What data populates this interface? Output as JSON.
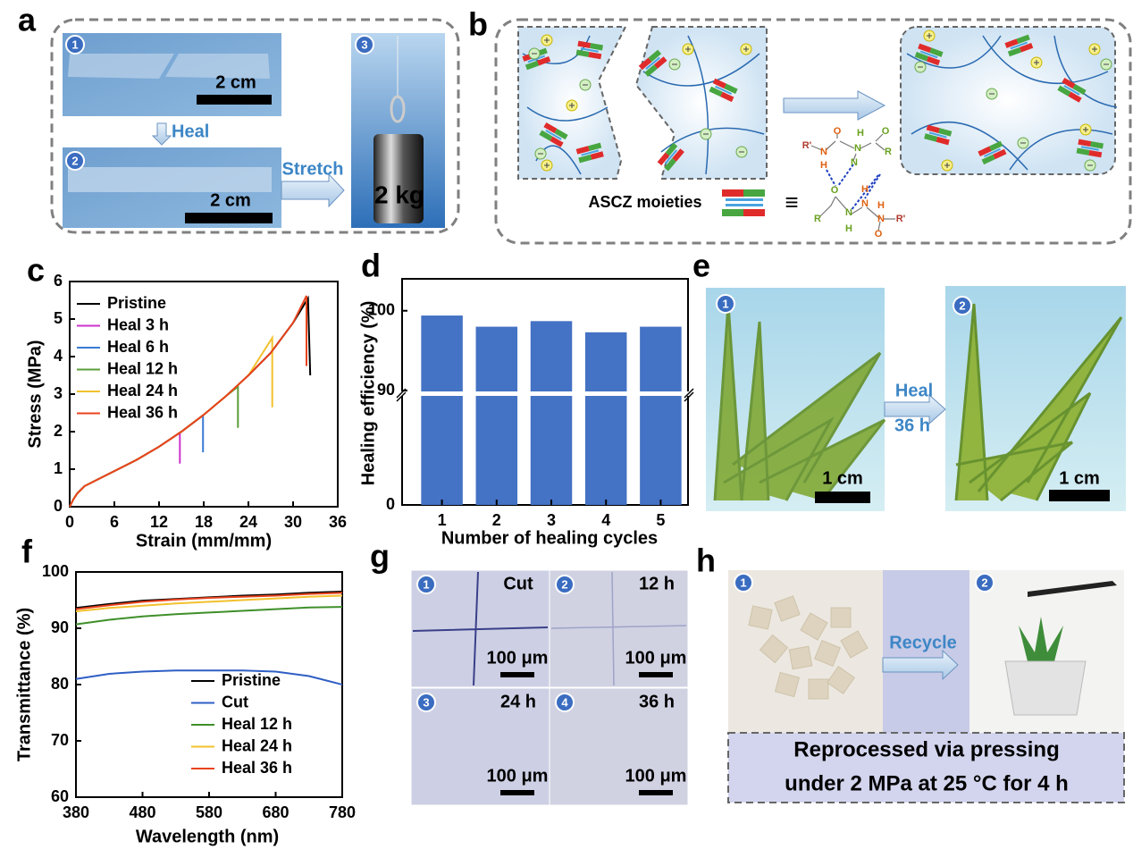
{
  "panel_labels": [
    "a",
    "b",
    "c",
    "d",
    "e",
    "f",
    "g",
    "h"
  ],
  "panel_a": {
    "markers": [
      "1",
      "2",
      "3"
    ],
    "scale_1": "2 cm",
    "heal": "Heal",
    "scale_2": "2 cm",
    "stretch": "Stretch",
    "weight": "2 kg"
  },
  "panel_b": {
    "moieties": "ASCZ moieties",
    "equivalent": "≡",
    "atoms": [
      "R'",
      "N",
      "H",
      "O",
      "H",
      "N",
      "N",
      "O",
      "R",
      "O",
      "R",
      "N",
      "H",
      "N",
      "H",
      "O",
      "N",
      "H",
      "R'"
    ]
  },
  "panel_e": {
    "markers": [
      "1",
      "2"
    ],
    "heal": "Heal",
    "time": "36 h",
    "scale_1": "1 cm",
    "scale_2": "1 cm"
  },
  "panel_g": {
    "images": [
      {
        "marker": "1",
        "label": "Cut",
        "scale": "100 μm"
      },
      {
        "marker": "2",
        "label": "12 h",
        "scale": "100 μm"
      },
      {
        "marker": "3",
        "label": "24 h",
        "scale": "100 μm"
      },
      {
        "marker": "4",
        "label": "36 h",
        "scale": "100 μm"
      }
    ]
  },
  "panel_h": {
    "markers": [
      "1",
      "2"
    ],
    "recycle": "Recycle",
    "caption": [
      "Reprocessed via pressing",
      "under 2 MPa at 25 °C for 4 h"
    ]
  },
  "chart_data": [
    {
      "type": "line",
      "xlabel": "Strain (mm/mm)",
      "ylabel": "Stress (MPa)",
      "xlim": [
        0,
        36
      ],
      "ylim": [
        0,
        6
      ],
      "xticks": [
        0,
        6,
        12,
        18,
        24,
        30,
        36
      ],
      "yticks": [
        0,
        1,
        2,
        3,
        4,
        5,
        6
      ],
      "legend": "upper left",
      "series": [
        {
          "name": "Pristine",
          "color": "#000000",
          "x": [
            0,
            0.5,
            1,
            2,
            4,
            6,
            9,
            12,
            15,
            18,
            21,
            24,
            27,
            30,
            32,
            32.3
          ],
          "values": [
            0,
            0.2,
            0.35,
            0.55,
            0.75,
            0.95,
            1.25,
            1.6,
            2.0,
            2.45,
            2.95,
            3.5,
            4.1,
            4.9,
            5.55,
            3.5
          ]
        },
        {
          "name": "Heal 3 h",
          "color": "#cc33cc",
          "x": [
            0,
            0.5,
            1,
            2,
            4,
            6,
            9,
            12,
            14.8,
            14.8
          ],
          "values": [
            0,
            0.2,
            0.35,
            0.55,
            0.75,
            0.95,
            1.25,
            1.6,
            1.97,
            1.15
          ]
        },
        {
          "name": "Heal 6 h",
          "color": "#3a7bd5",
          "x": [
            0,
            0.5,
            1,
            2,
            4,
            6,
            9,
            12,
            15,
            17.9,
            17.9
          ],
          "values": [
            0,
            0.2,
            0.35,
            0.55,
            0.75,
            0.95,
            1.25,
            1.6,
            2.0,
            2.43,
            1.45
          ]
        },
        {
          "name": "Heal 12 h",
          "color": "#5a9e3a",
          "x": [
            0,
            0.5,
            1,
            2,
            4,
            6,
            9,
            12,
            15,
            18,
            21,
            22.6,
            22.6
          ],
          "values": [
            0,
            0.2,
            0.35,
            0.55,
            0.75,
            0.95,
            1.25,
            1.6,
            2.0,
            2.45,
            2.95,
            3.2,
            2.1
          ]
        },
        {
          "name": "Heal 24 h",
          "color": "#f2c12e",
          "x": [
            0,
            0.5,
            1,
            2,
            4,
            6,
            9,
            12,
            15,
            18,
            21,
            24,
            27.2,
            27.2
          ],
          "values": [
            0,
            0.2,
            0.35,
            0.55,
            0.75,
            0.95,
            1.25,
            1.6,
            2.0,
            2.45,
            2.95,
            3.5,
            4.5,
            2.65
          ]
        },
        {
          "name": "Heal 36 h",
          "color": "#e8431c",
          "x": [
            0,
            0.5,
            1,
            2,
            4,
            6,
            9,
            12,
            15,
            18,
            21,
            24,
            27,
            30,
            31.8,
            31.8
          ],
          "values": [
            0,
            0.2,
            0.35,
            0.55,
            0.75,
            0.95,
            1.25,
            1.6,
            2.0,
            2.45,
            2.95,
            3.5,
            4.1,
            4.9,
            5.62,
            3.75
          ]
        }
      ]
    },
    {
      "type": "bar",
      "xlabel": "Number of healing cycles",
      "ylabel": "Healing efficiency (%)",
      "categories": [
        "1",
        "2",
        "3",
        "4",
        "5"
      ],
      "values": [
        99.4,
        98.0,
        98.7,
        97.3,
        98.0
      ],
      "color": "#4472c4",
      "ylim": [
        0,
        104
      ],
      "axis_break": 90,
      "yticks": [
        0,
        90,
        100
      ]
    },
    {
      "type": "line",
      "xlabel": "Wavelength (nm)",
      "ylabel": "Transmittance (%)",
      "xlim": [
        380,
        780
      ],
      "ylim": [
        60,
        100
      ],
      "xticks": [
        380,
        480,
        580,
        680,
        780
      ],
      "yticks": [
        60,
        70,
        80,
        90,
        100
      ],
      "legend": "lower center",
      "x": [
        380,
        430,
        480,
        530,
        580,
        630,
        680,
        730,
        780
      ],
      "series": [
        {
          "name": "Pristine",
          "color": "#000000",
          "values": [
            93.6,
            94.3,
            94.9,
            95.2,
            95.5,
            95.8,
            96.0,
            96.3,
            96.5
          ]
        },
        {
          "name": "Cut",
          "color": "#2f5fc4",
          "values": [
            81.0,
            81.9,
            82.3,
            82.5,
            82.5,
            82.5,
            82.3,
            81.5,
            80.0
          ]
        },
        {
          "name": "Heal 12 h",
          "color": "#3f8f2a",
          "values": [
            90.7,
            91.5,
            92.1,
            92.5,
            92.8,
            93.1,
            93.4,
            93.7,
            93.8
          ]
        },
        {
          "name": "Heal 24 h",
          "color": "#f2c12e",
          "values": [
            93.0,
            93.6,
            94.0,
            94.4,
            94.7,
            95.0,
            95.3,
            95.6,
            95.8
          ]
        },
        {
          "name": "Heal 36 h",
          "color": "#e8431c",
          "values": [
            93.4,
            94.1,
            94.7,
            95.1,
            95.4,
            95.6,
            95.8,
            96.1,
            96.3
          ]
        }
      ]
    }
  ]
}
